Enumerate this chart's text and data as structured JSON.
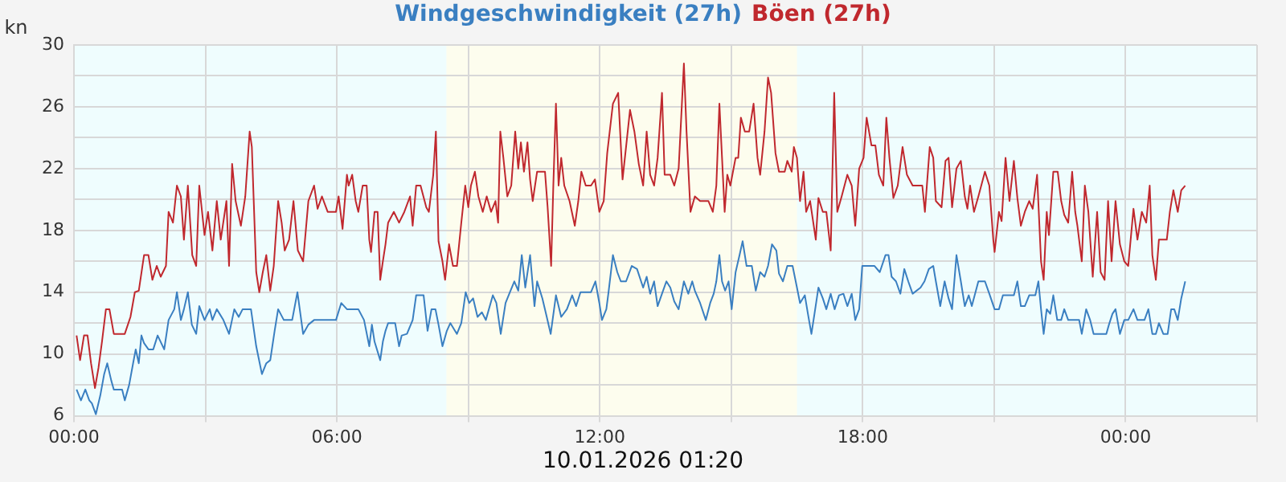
{
  "chart_data": {
    "type": "line",
    "ylabel": "kn",
    "legend": "top",
    "grid": true,
    "marker": "none",
    "line_style": "solid",
    "xlim": [
      0,
      27
    ],
    "ylim": [
      6,
      30
    ],
    "xticks": [
      {
        "value": 0,
        "label": "00:00"
      },
      {
        "value": 3,
        "label": null
      },
      {
        "value": 6,
        "label": "06:00"
      },
      {
        "value": 9,
        "label": null
      },
      {
        "value": 12,
        "label": "12:00"
      },
      {
        "value": 15,
        "label": null
      },
      {
        "value": 18,
        "label": "18:00"
      },
      {
        "value": 21,
        "label": null
      },
      {
        "value": 24,
        "label": "00:00"
      },
      {
        "value": 27,
        "label": null
      }
    ],
    "yticks": [
      6,
      {
        "value": 8,
        "label": null
      },
      10,
      {
        "value": 12,
        "label": null
      },
      14,
      {
        "value": 16,
        "label": null
      },
      18,
      {
        "value": 20,
        "label": null
      },
      22,
      {
        "value": 24,
        "label": null
      },
      26,
      {
        "value": 28,
        "label": null
      },
      30
    ],
    "bands": [
      {
        "axis": "x",
        "from": 8.5,
        "to": 16.5,
        "label": null,
        "color": "#fdfdee"
      }
    ],
    "annotations": [
      "10.01.2026 01:20"
    ],
    "series": [
      {
        "name": "Windgeschwindigkeit (27h)",
        "color": "#3a7fc1",
        "x": [
          0.06,
          0.16,
          0.26,
          0.35,
          0.41,
          0.5,
          0.6,
          0.69,
          0.76,
          0.85,
          0.91,
          1.1,
          1.16,
          1.26,
          1.35,
          1.41,
          1.48,
          1.54,
          1.6,
          1.7,
          1.81,
          1.91,
          2.06,
          2.16,
          2.29,
          2.35,
          2.44,
          2.51,
          2.6,
          2.69,
          2.79,
          2.86,
          2.98,
          3.1,
          3.16,
          3.26,
          3.41,
          3.54,
          3.66,
          3.76,
          3.85,
          4.04,
          4.16,
          4.29,
          4.39,
          4.48,
          4.58,
          4.66,
          4.79,
          4.98,
          5.1,
          5.23,
          5.35,
          5.48,
          5.98,
          6.1,
          6.23,
          6.49,
          6.62,
          6.74,
          6.8,
          6.86,
          6.99,
          7.05,
          7.11,
          7.17,
          7.33,
          7.42,
          7.48,
          7.6,
          7.73,
          7.81,
          7.98,
          8.07,
          8.16,
          8.25,
          8.32,
          8.41,
          8.51,
          8.59,
          8.74,
          8.84,
          8.94,
          9.02,
          9.11,
          9.21,
          9.31,
          9.4,
          9.56,
          9.64,
          9.74,
          9.85,
          9.95,
          10.05,
          10.14,
          10.22,
          10.3,
          10.41,
          10.51,
          10.57,
          10.69,
          10.79,
          10.88,
          11.0,
          11.12,
          11.25,
          11.37,
          11.46,
          11.56,
          11.8,
          11.9,
          11.99,
          12.05,
          12.15,
          12.2,
          12.3,
          12.4,
          12.48,
          12.6,
          12.73,
          12.85,
          12.99,
          13.07,
          13.15,
          13.24,
          13.32,
          13.42,
          13.52,
          13.61,
          13.7,
          13.8,
          13.92,
          14.02,
          14.11,
          14.17,
          14.29,
          14.42,
          14.52,
          14.6,
          14.66,
          14.73,
          14.79,
          14.86,
          14.94,
          15.01,
          15.1,
          15.19,
          15.26,
          15.35,
          15.47,
          15.56,
          15.66,
          15.76,
          15.84,
          15.93,
          16.03,
          16.09,
          16.18,
          16.28,
          16.4,
          16.5,
          16.57,
          16.68,
          16.75,
          16.83,
          16.9,
          16.99,
          17.09,
          17.17,
          17.27,
          17.36,
          17.46,
          17.56,
          17.65,
          17.75,
          17.83,
          17.92,
          17.99,
          18.27,
          18.39,
          18.52,
          18.59,
          18.66,
          18.76,
          18.86,
          18.95,
          19.04,
          19.14,
          19.32,
          19.41,
          19.51,
          19.61,
          19.67,
          19.77,
          19.87,
          19.96,
          20.04,
          20.14,
          20.24,
          20.33,
          20.42,
          20.49,
          20.64,
          20.79,
          20.89,
          21.01,
          21.11,
          21.2,
          21.45,
          21.53,
          21.61,
          21.7,
          21.8,
          21.94,
          22.01,
          22.07,
          22.13,
          22.2,
          22.28,
          22.35,
          22.44,
          22.53,
          22.6,
          22.69,
          22.94,
          23.0,
          23.1,
          23.19,
          23.27,
          23.56,
          23.62,
          23.7,
          23.77,
          23.87,
          23.97,
          24.06,
          24.18,
          24.27,
          24.43,
          24.52,
          24.61,
          24.69,
          24.76,
          24.86,
          24.96,
          25.04,
          25.11,
          25.19,
          25.27,
          25.36
        ],
        "values": [
          7.7,
          7,
          7.7,
          7,
          6.8,
          6.1,
          7.3,
          8.7,
          9.4,
          8.3,
          7.7,
          7.7,
          7,
          8,
          9.4,
          10.3,
          9.4,
          11.2,
          10.7,
          10.3,
          10.3,
          11.2,
          10.3,
          12.2,
          12.9,
          14,
          12.2,
          12.9,
          14,
          11.9,
          11.3,
          13.1,
          12.2,
          12.9,
          12.2,
          12.9,
          12.2,
          11.3,
          12.9,
          12.4,
          12.9,
          12.9,
          10.5,
          8.7,
          9.4,
          9.6,
          11.5,
          12.9,
          12.2,
          12.2,
          14,
          11.3,
          11.9,
          12.2,
          12.2,
          13.3,
          12.9,
          12.9,
          12.2,
          10.5,
          11.9,
          10.8,
          9.6,
          10.8,
          11.5,
          12,
          12,
          10.5,
          11.2,
          11.3,
          12.2,
          13.8,
          13.8,
          11.5,
          12.9,
          12.9,
          11.9,
          10.5,
          11.5,
          12,
          11.3,
          12,
          14,
          13.3,
          13.6,
          12.4,
          12.7,
          12.2,
          13.8,
          13.3,
          11.3,
          13.3,
          14,
          14.7,
          14.1,
          16.4,
          14.3,
          16.4,
          13.1,
          14.7,
          13.6,
          12.4,
          11.3,
          13.8,
          12.4,
          12.9,
          13.8,
          13.1,
          14,
          14,
          14.7,
          13.3,
          12.2,
          12.9,
          14,
          16.4,
          15.3,
          14.7,
          14.7,
          15.7,
          15.5,
          14.3,
          15,
          13.9,
          14.7,
          13.1,
          13.9,
          14.7,
          14.3,
          13.4,
          12.9,
          14.7,
          13.9,
          14.7,
          14.1,
          13.3,
          12.2,
          13.3,
          13.9,
          14.7,
          16.4,
          14.7,
          14.1,
          14.7,
          12.9,
          15.3,
          16.4,
          17.3,
          15.7,
          15.7,
          14.1,
          15.3,
          15,
          15.7,
          17.1,
          16.7,
          15.2,
          14.7,
          15.7,
          15.7,
          14.3,
          13.3,
          13.8,
          12.6,
          11.3,
          12.6,
          14.3,
          13.6,
          12.9,
          13.9,
          12.9,
          13.8,
          13.9,
          13.1,
          13.9,
          12.2,
          12.9,
          15.7,
          15.7,
          15.3,
          16.4,
          16.4,
          15,
          14.7,
          13.9,
          15.5,
          14.7,
          13.9,
          14.3,
          14.7,
          15.5,
          15.7,
          14.7,
          13.1,
          14.7,
          13.6,
          12.9,
          16.4,
          14.7,
          13.1,
          13.8,
          13.1,
          14.7,
          14.7,
          13.9,
          12.9,
          12.9,
          13.8,
          13.8,
          14.7,
          13.1,
          13.1,
          13.8,
          13.8,
          14.7,
          12.9,
          11.3,
          12.9,
          12.6,
          13.8,
          12.2,
          12.2,
          12.9,
          12.2,
          12.2,
          11.3,
          12.9,
          12.2,
          11.3,
          11.3,
          11.9,
          12.6,
          12.9,
          11.3,
          12.2,
          12.2,
          12.9,
          12.2,
          12.2,
          12.9,
          11.3,
          11.3,
          12,
          11.3,
          11.3,
          12.9,
          12.9,
          12.2,
          13.6,
          14.7
        ]
      },
      {
        "name": "Böen (27h)",
        "color": "#c0282e",
        "x": [
          0.06,
          0.14,
          0.23,
          0.31,
          0.39,
          0.48,
          0.56,
          0.64,
          0.73,
          0.81,
          0.91,
          1.16,
          1.29,
          1.39,
          1.48,
          1.6,
          1.7,
          1.79,
          1.89,
          1.98,
          2.1,
          2.16,
          2.26,
          2.35,
          2.44,
          2.51,
          2.6,
          2.7,
          2.79,
          2.86,
          2.98,
          3.06,
          3.16,
          3.26,
          3.35,
          3.48,
          3.54,
          3.61,
          3.69,
          3.81,
          3.91,
          4.01,
          4.06,
          4.16,
          4.23,
          4.31,
          4.39,
          4.48,
          4.56,
          4.66,
          4.74,
          4.81,
          4.91,
          5.01,
          5.11,
          5.23,
          5.35,
          5.48,
          5.56,
          5.66,
          5.79,
          5.98,
          6.04,
          6.13,
          6.23,
          6.27,
          6.35,
          6.43,
          6.49,
          6.59,
          6.68,
          6.74,
          6.78,
          6.86,
          6.93,
          6.99,
          7.05,
          7.11,
          7.17,
          7.3,
          7.42,
          7.54,
          7.67,
          7.73,
          7.81,
          7.91,
          8.04,
          8.1,
          8.2,
          8.26,
          8.32,
          8.41,
          8.47,
          8.56,
          8.65,
          8.74,
          8.84,
          8.93,
          9.0,
          9.06,
          9.15,
          9.23,
          9.33,
          9.42,
          9.52,
          9.62,
          9.68,
          9.73,
          9.8,
          9.89,
          9.98,
          10.07,
          10.14,
          10.2,
          10.27,
          10.35,
          10.41,
          10.47,
          10.57,
          10.75,
          10.81,
          10.89,
          10.94,
          11.0,
          11.06,
          11.12,
          11.19,
          11.31,
          11.43,
          11.51,
          11.58,
          11.68,
          11.8,
          11.89,
          11.99,
          12.09,
          12.17,
          12.3,
          12.42,
          12.52,
          12.6,
          12.69,
          12.79,
          12.89,
          12.99,
          13.07,
          13.15,
          13.24,
          13.32,
          13.42,
          13.48,
          13.61,
          13.7,
          13.8,
          13.92,
          13.98,
          14.07,
          14.17,
          14.29,
          14.48,
          14.58,
          14.66,
          14.73,
          14.79,
          14.85,
          14.91,
          14.98,
          15.1,
          15.16,
          15.22,
          15.31,
          15.41,
          15.51,
          15.6,
          15.66,
          15.76,
          15.84,
          15.91,
          16.01,
          16.09,
          16.22,
          16.28,
          16.38,
          16.43,
          16.5,
          16.57,
          16.65,
          16.71,
          16.8,
          16.93,
          16.99,
          17.09,
          17.17,
          17.27,
          17.35,
          17.42,
          17.52,
          17.65,
          17.75,
          17.83,
          17.92,
          18.02,
          18.09,
          18.2,
          18.29,
          18.37,
          18.47,
          18.54,
          18.61,
          18.7,
          18.8,
          18.91,
          19.01,
          19.14,
          19.36,
          19.42,
          19.53,
          19.61,
          19.67,
          19.8,
          19.89,
          19.96,
          20.04,
          20.14,
          20.24,
          20.33,
          20.39,
          20.45,
          20.54,
          20.64,
          20.79,
          20.89,
          20.98,
          21.01,
          21.11,
          21.17,
          21.26,
          21.35,
          21.45,
          21.53,
          21.61,
          21.7,
          21.8,
          21.88,
          21.98,
          22.07,
          22.13,
          22.2,
          22.25,
          22.35,
          22.45,
          22.53,
          22.6,
          22.69,
          22.78,
          22.85,
          22.9,
          23.0,
          23.07,
          23.15,
          23.25,
          23.35,
          23.43,
          23.52,
          23.6,
          23.68,
          23.77,
          23.87,
          23.97,
          24.06,
          24.18,
          24.27,
          24.37,
          24.47,
          24.55,
          24.61,
          24.69,
          24.76,
          24.94,
          25.01,
          25.09,
          25.19,
          25.27,
          25.36
        ],
        "values": [
          11.2,
          9.6,
          11.2,
          11.2,
          9.4,
          7.8,
          9.1,
          10.8,
          12.9,
          12.9,
          11.3,
          11.3,
          12.4,
          14,
          14.1,
          16.4,
          16.4,
          14.8,
          15.7,
          15,
          15.7,
          19.2,
          18.5,
          20.9,
          20.2,
          17.4,
          20.9,
          16.4,
          15.7,
          20.9,
          17.7,
          19.2,
          16.7,
          19.9,
          17.4,
          19.9,
          15.7,
          22.3,
          19.9,
          18.3,
          20.2,
          24.4,
          23.4,
          15.3,
          14,
          15.3,
          16.4,
          14.1,
          15.7,
          19.9,
          18.5,
          16.7,
          17.4,
          19.9,
          16.7,
          16,
          19.9,
          20.9,
          19.4,
          20.2,
          19.2,
          19.2,
          20.2,
          18.1,
          21.6,
          20.9,
          21.6,
          19.9,
          19.2,
          20.9,
          20.9,
          17.4,
          16.6,
          19.2,
          19.2,
          14.8,
          16,
          17.1,
          18.5,
          19.2,
          18.5,
          19.2,
          20.2,
          18.3,
          20.9,
          20.9,
          19.5,
          19.2,
          21.6,
          24.4,
          17.3,
          16,
          14.8,
          17.1,
          15.7,
          15.7,
          18.5,
          20.9,
          19.5,
          20.9,
          21.8,
          20.2,
          19.2,
          20.2,
          19.2,
          19.9,
          18.5,
          24.4,
          22.7,
          20.2,
          20.9,
          24.4,
          22,
          23.7,
          21.8,
          23.7,
          21.3,
          19.9,
          21.8,
          21.8,
          19.5,
          15.7,
          20.9,
          26.2,
          20.9,
          22.7,
          20.9,
          19.9,
          18.3,
          19.9,
          21.8,
          20.9,
          20.9,
          21.3,
          19.2,
          19.9,
          23,
          26.2,
          26.9,
          21.3,
          23.4,
          25.8,
          24.4,
          22.3,
          20.9,
          24.4,
          21.6,
          20.9,
          22.7,
          26.9,
          21.6,
          21.6,
          20.9,
          22,
          28.8,
          24.4,
          19.2,
          20.2,
          19.9,
          19.9,
          19.2,
          20.9,
          26.2,
          22.7,
          19.2,
          21.6,
          20.9,
          22.7,
          22.7,
          25.3,
          24.4,
          24.4,
          26.2,
          22.7,
          21.6,
          24.4,
          27.9,
          26.9,
          23,
          21.8,
          21.8,
          22.5,
          21.8,
          23.4,
          22.7,
          19.9,
          21.8,
          19.2,
          19.9,
          17.4,
          20.1,
          19.2,
          19.2,
          16.7,
          26.9,
          19.2,
          20.2,
          21.6,
          20.9,
          18.3,
          22,
          22.7,
          25.3,
          23.5,
          23.5,
          21.6,
          20.9,
          25.3,
          22.7,
          20.1,
          20.9,
          23.4,
          21.6,
          20.9,
          20.9,
          19.2,
          23.4,
          22.7,
          19.9,
          19.5,
          22.5,
          22.7,
          19.5,
          22,
          22.5,
          20.2,
          19.4,
          20.9,
          19.2,
          20.2,
          21.8,
          20.9,
          17.4,
          16.6,
          19.2,
          18.6,
          22.7,
          19.9,
          22.5,
          20.1,
          18.3,
          19.2,
          19.9,
          19.4,
          21.6,
          16,
          14.8,
          19.2,
          17.7,
          21.8,
          21.8,
          19.9,
          19,
          18.5,
          21.8,
          19.2,
          18.3,
          16,
          20.9,
          19.2,
          15,
          19.2,
          15.3,
          14.8,
          19.9,
          16,
          19.9,
          17.1,
          16,
          15.7,
          19.4,
          17.4,
          19.2,
          18.5,
          20.9,
          16.4,
          14.8,
          17.4,
          17.4,
          19.2,
          20.6,
          19.2,
          20.6,
          20.9
        ]
      }
    ]
  }
}
